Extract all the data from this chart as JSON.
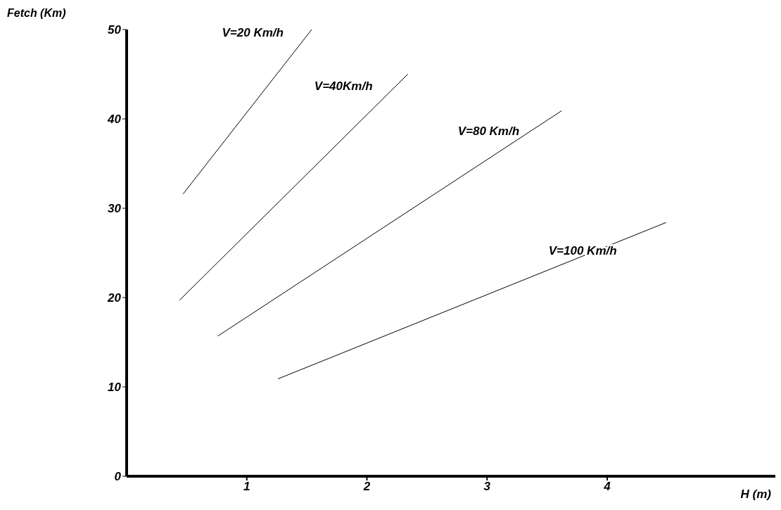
{
  "chart_data": {
    "type": "line",
    "xlabel": "H (m)",
    "ylabel": "Fetch (Km)",
    "xlim": [
      0,
      5.4
    ],
    "xticks": [
      1,
      2,
      3,
      4
    ],
    "ylim": [
      0,
      50
    ],
    "yticks": [
      0,
      10,
      20,
      30,
      40,
      50
    ],
    "grid": false,
    "legend": false,
    "marker": "none",
    "line_style": "solid",
    "series": [
      {
        "name": "V=20 Km/h",
        "color": "#000000",
        "x": [
          0.47,
          1.54
        ],
        "values": [
          31.6,
          50
        ]
      },
      {
        "name": "V=40Km/h",
        "color": "#000000",
        "x": [
          0.44,
          2.34
        ],
        "values": [
          19.7,
          45
        ]
      },
      {
        "name": "V=80 Km/h",
        "color": "#000000",
        "x": [
          0.76,
          3.62
        ],
        "values": [
          15.7,
          40.9
        ]
      },
      {
        "name": "V=100 Km/h",
        "color": "#000000",
        "x": [
          1.26,
          4.49
        ],
        "values": [
          10.9,
          28.4
        ]
      }
    ]
  }
}
